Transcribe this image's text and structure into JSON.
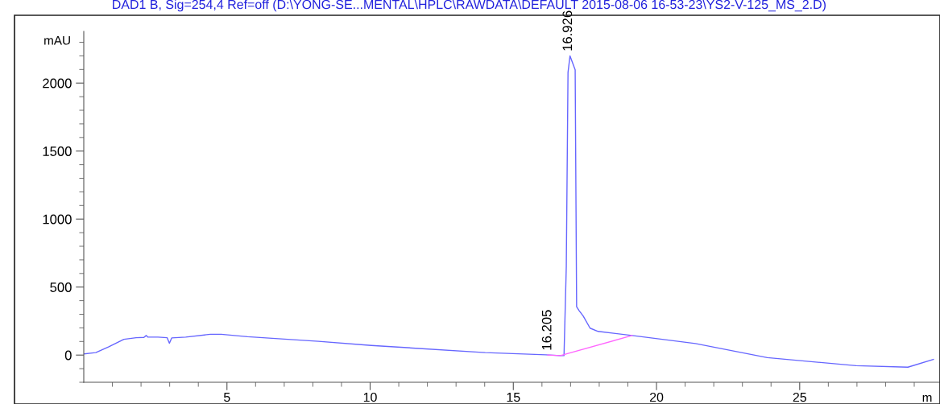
{
  "chart_data": {
    "type": "line",
    "title": "DAD1 B, Sig=254,4 Ref=off (D:\\YONG-SE...MENTAL\\HPLC\\RAWDATA\\DEFAULT 2015-08-06 16-53-23\\YS2-V-125_MS_2.D)",
    "xlabel": "m",
    "ylabel": "mAU",
    "series": [
      {
        "color": "#6666ff",
        "x": [
          0.02,
          0.42,
          0.86,
          1.4,
          1.83,
          2.1,
          2.18,
          2.24,
          2.59,
          2.91,
          2.99,
          3.07,
          3.56,
          4.42,
          4.8,
          5.72,
          8.2,
          10.04,
          14.02,
          16.14,
          16.64,
          16.77,
          16.85,
          16.91,
          16.98,
          17.16,
          17.21,
          17.3,
          17.44,
          17.68,
          17.96,
          19.15,
          21.36,
          23.87,
          26.97,
          28.78,
          29.67
        ],
        "values": [
          9,
          18,
          59,
          116,
          128,
          130,
          144,
          132,
          132,
          128,
          87,
          126,
          132,
          153,
          153,
          135,
          101,
          71,
          18,
          2,
          -4,
          -4,
          650,
          2077,
          2200,
          2097,
          356,
          326,
          287,
          198,
          174,
          144,
          85,
          -19,
          -78,
          -89,
          -32
        ]
      },
      {
        "color": "#ff66ff",
        "x": [
          16.2,
          16.64,
          19.15
        ],
        "values": [
          0,
          -4,
          144
        ]
      }
    ],
    "annotations": [
      {
        "text": "16.205",
        "x": 16.205,
        "y": 0
      },
      {
        "text": "16.926",
        "x": 16.926,
        "y": 2200
      }
    ],
    "xlim": [
      0,
      29.9
    ],
    "ylim": [
      -200,
      2380
    ],
    "xticks": [
      {
        "value": 1,
        "label": null
      },
      {
        "value": 2,
        "label": null
      },
      {
        "value": 3,
        "label": null
      },
      {
        "value": 4,
        "label": null
      },
      5,
      {
        "value": 6,
        "label": null
      },
      {
        "value": 7,
        "label": null
      },
      {
        "value": 8,
        "label": null
      },
      {
        "value": 9,
        "label": null
      },
      10,
      {
        "value": 11,
        "label": null
      },
      {
        "value": 12,
        "label": null
      },
      {
        "value": 13,
        "label": null
      },
      {
        "value": 14,
        "label": null
      },
      15,
      {
        "value": 16,
        "label": null
      },
      {
        "value": 17,
        "label": null
      },
      {
        "value": 18,
        "label": null
      },
      {
        "value": 19,
        "label": null
      },
      20,
      {
        "value": 21,
        "label": null
      },
      {
        "value": 22,
        "label": null
      },
      {
        "value": 23,
        "label": null
      },
      {
        "value": 24,
        "label": null
      },
      25,
      {
        "value": 26,
        "label": null
      },
      {
        "value": 27,
        "label": null
      },
      {
        "value": 28,
        "label": null
      },
      {
        "value": 29,
        "label": null
      }
    ],
    "yticks": [
      {
        "value": -200,
        "label": null
      },
      {
        "value": -100,
        "label": null
      },
      0,
      {
        "value": 100,
        "label": null
      },
      {
        "value": 200,
        "label": null
      },
      {
        "value": 300,
        "label": null
      },
      {
        "value": 400,
        "label": null
      },
      500,
      {
        "value": 600,
        "label": null
      },
      {
        "value": 700,
        "label": null
      },
      {
        "value": 800,
        "label": null
      },
      {
        "value": 900,
        "label": null
      },
      1000,
      {
        "value": 1100,
        "label": null
      },
      {
        "value": 1200,
        "label": null
      },
      {
        "value": 1300,
        "label": null
      },
      {
        "value": 1400,
        "label": null
      },
      1500,
      {
        "value": 1600,
        "label": null
      },
      {
        "value": 1700,
        "label": null
      },
      {
        "value": 1800,
        "label": null
      },
      {
        "value": 1900,
        "label": null
      },
      2000,
      {
        "value": 2100,
        "label": null
      },
      {
        "value": 2200,
        "label": null
      },
      {
        "value": 2300,
        "label": null
      }
    ],
    "grid": false,
    "legend": false
  }
}
